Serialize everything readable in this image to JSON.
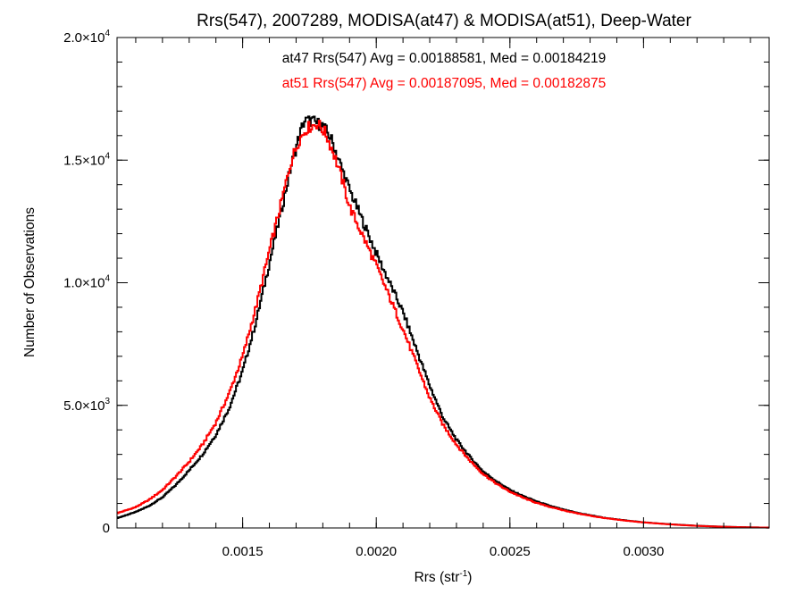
{
  "chart_data": {
    "type": "line",
    "title": "Rrs(547), 2007289, MODISA(at47) & MODISA(at51), Deep-Water",
    "xlabel": "Rrs (str",
    "xlabel_sup": "-1",
    "xlabel_suffix": ")",
    "ylabel": "Number of Observations",
    "xlim": [
      0.00103,
      0.00347
    ],
    "ylim": [
      0,
      20000
    ],
    "x_ticks": [
      {
        "value": 0.0015,
        "label": "0.0015"
      },
      {
        "value": 0.002,
        "label": "0.0020"
      },
      {
        "value": 0.0025,
        "label": "0.0025"
      },
      {
        "value": 0.003,
        "label": "0.0030"
      }
    ],
    "y_ticks": [
      {
        "value": 0,
        "label": "0"
      },
      {
        "value": 5000,
        "mantissa": "5.0×10",
        "exp": "3"
      },
      {
        "value": 10000,
        "mantissa": "1.0×10",
        "exp": "4"
      },
      {
        "value": 15000,
        "mantissa": "1.5×10",
        "exp": "4"
      },
      {
        "value": 20000,
        "mantissa": "2.0×10",
        "exp": "4"
      }
    ],
    "x_minor_step": 0.0001,
    "y_minor_step": 1000,
    "grid": false,
    "series": [
      {
        "name": "at47",
        "color": "#000000",
        "stats_text": "at47 Rrs(547) Avg = 0.00188581, Med = 0.00184219",
        "points": [
          [
            0.00103,
            400
          ],
          [
            0.0011,
            650
          ],
          [
            0.00115,
            900
          ],
          [
            0.0012,
            1250
          ],
          [
            0.00125,
            1750
          ],
          [
            0.0013,
            2350
          ],
          [
            0.00135,
            3000
          ],
          [
            0.0014,
            3800
          ],
          [
            0.00145,
            4900
          ],
          [
            0.0015,
            6400
          ],
          [
            0.00155,
            8400
          ],
          [
            0.0016,
            10800
          ],
          [
            0.00165,
            13200
          ],
          [
            0.00168,
            14700
          ],
          [
            0.00171,
            15900
          ],
          [
            0.00173,
            16600
          ],
          [
            0.00176,
            16600
          ],
          [
            0.0018,
            16400
          ],
          [
            0.00183,
            15900
          ],
          [
            0.00186,
            15000
          ],
          [
            0.0019,
            13800
          ],
          [
            0.00195,
            12500
          ],
          [
            0.002,
            11200
          ],
          [
            0.00205,
            10000
          ],
          [
            0.0021,
            8800
          ],
          [
            0.00215,
            7300
          ],
          [
            0.0022,
            5800
          ],
          [
            0.00225,
            4500
          ],
          [
            0.0023,
            3600
          ],
          [
            0.00235,
            2900
          ],
          [
            0.0024,
            2300
          ],
          [
            0.00245,
            1900
          ],
          [
            0.0025,
            1550
          ],
          [
            0.00255,
            1300
          ],
          [
            0.0026,
            1080
          ],
          [
            0.00265,
            900
          ],
          [
            0.0027,
            750
          ],
          [
            0.00275,
            620
          ],
          [
            0.0028,
            520
          ],
          [
            0.00285,
            420
          ],
          [
            0.0029,
            350
          ],
          [
            0.00295,
            290
          ],
          [
            0.003,
            230
          ],
          [
            0.0031,
            150
          ],
          [
            0.0032,
            90
          ],
          [
            0.0033,
            50
          ],
          [
            0.0034,
            25
          ],
          [
            0.00347,
            15
          ]
        ]
      },
      {
        "name": "at51",
        "color": "#ff0000",
        "stats_text": "at51 Rrs(547) Avg = 0.00187095, Med = 0.00182875",
        "points": [
          [
            0.00103,
            600
          ],
          [
            0.0011,
            850
          ],
          [
            0.00115,
            1150
          ],
          [
            0.0012,
            1550
          ],
          [
            0.00125,
            2100
          ],
          [
            0.0013,
            2700
          ],
          [
            0.00135,
            3400
          ],
          [
            0.0014,
            4300
          ],
          [
            0.00145,
            5500
          ],
          [
            0.0015,
            7000
          ],
          [
            0.00155,
            9000
          ],
          [
            0.0016,
            11300
          ],
          [
            0.00165,
            13500
          ],
          [
            0.00168,
            14900
          ],
          [
            0.00171,
            15800
          ],
          [
            0.00174,
            16300
          ],
          [
            0.00178,
            16500
          ],
          [
            0.00181,
            16100
          ],
          [
            0.00184,
            15300
          ],
          [
            0.00187,
            14300
          ],
          [
            0.0019,
            13100
          ],
          [
            0.00195,
            11900
          ],
          [
            0.002,
            10700
          ],
          [
            0.00205,
            9400
          ],
          [
            0.0021,
            8100
          ],
          [
            0.00215,
            6700
          ],
          [
            0.0022,
            5300
          ],
          [
            0.00225,
            4200
          ],
          [
            0.0023,
            3400
          ],
          [
            0.00235,
            2750
          ],
          [
            0.0024,
            2200
          ],
          [
            0.00245,
            1800
          ],
          [
            0.0025,
            1480
          ],
          [
            0.00255,
            1230
          ],
          [
            0.0026,
            1020
          ],
          [
            0.00265,
            860
          ],
          [
            0.0027,
            720
          ],
          [
            0.00275,
            600
          ],
          [
            0.0028,
            500
          ],
          [
            0.00285,
            410
          ],
          [
            0.0029,
            340
          ],
          [
            0.00295,
            280
          ],
          [
            0.003,
            225
          ],
          [
            0.0031,
            145
          ],
          [
            0.0032,
            85
          ],
          [
            0.0033,
            48
          ],
          [
            0.0034,
            24
          ],
          [
            0.00347,
            14
          ]
        ]
      }
    ]
  }
}
